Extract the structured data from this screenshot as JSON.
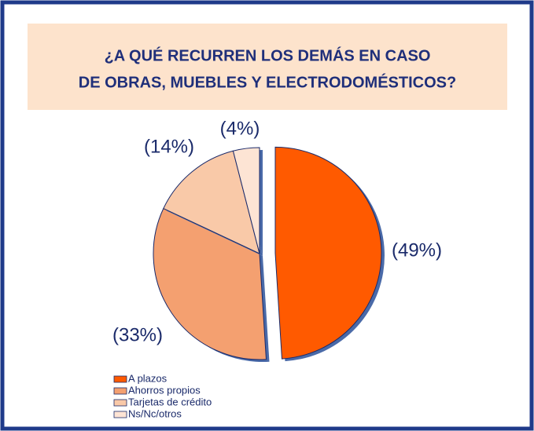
{
  "chart_data": {
    "type": "pie",
    "title": [
      "¿A QUÉ RECURREN LOS DEMÁS EN CASO",
      "DE OBRAS, MUEBLES Y ELECTRODOMÉSTICOS?"
    ],
    "categories": [
      "A plazos",
      "Ahorros propios",
      "Tarjetas de crédito",
      "Ns/Nc/otros"
    ],
    "values": [
      49,
      33,
      14,
      4
    ],
    "value_labels": [
      "(49%)",
      "(33%)",
      "(14%)",
      "(4%)"
    ],
    "colors": [
      "#ff5a00",
      "#f4a070",
      "#f9c9a8",
      "#fde4d4"
    ],
    "legend": "bottom-left"
  }
}
